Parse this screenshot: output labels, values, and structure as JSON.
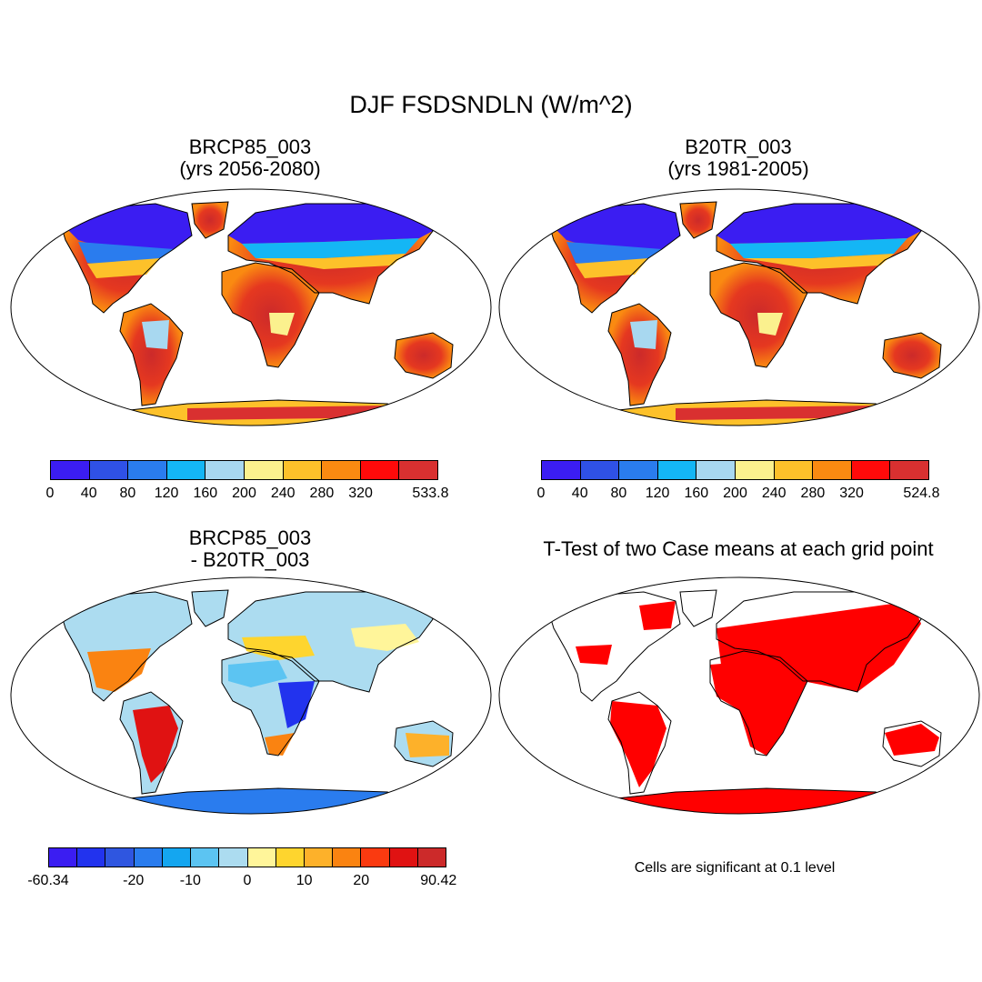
{
  "title": "DJF FSDSNDLN (W/m^2)",
  "panels": {
    "tl": {
      "line1": "BRCP85_003",
      "line2": "(yrs 2056-2080)"
    },
    "tr": {
      "line1": "B20TR_003",
      "line2": "(yrs 1981-2005)"
    },
    "bl": {
      "line1": "BRCP85_003",
      "line2": "- B20TR_003"
    },
    "br": {
      "line1": "T-Test of two Case means at each grid point"
    }
  },
  "colorbars": {
    "tl": {
      "colors": [
        "#3b1df2",
        "#2f51e6",
        "#2a7cee",
        "#14b6f5",
        "#a8d8f0",
        "#fbf18e",
        "#fdc12a",
        "#fa8a11",
        "#ff0a0a",
        "#d93030"
      ],
      "labels": [
        "0",
        "40",
        "80",
        "120",
        "160",
        "200",
        "240",
        "280",
        "320",
        "533.8"
      ]
    },
    "tr": {
      "colors": [
        "#3b1df2",
        "#2f51e6",
        "#2a7cee",
        "#14b6f5",
        "#a8d8f0",
        "#fbf18e",
        "#fdc12a",
        "#fa8a11",
        "#ff0a0a",
        "#d93030"
      ],
      "labels": [
        "0",
        "40",
        "80",
        "120",
        "160",
        "200",
        "240",
        "280",
        "320",
        "524.8"
      ]
    },
    "bl": {
      "colors": [
        "#3b1df2",
        "#2233ee",
        "#2f56e0",
        "#2a7cee",
        "#14a6f0",
        "#5cc4f2",
        "#acdcf0",
        "#fff59a",
        "#fed52e",
        "#fdb12a",
        "#fa8311",
        "#fa3a10",
        "#e01212",
        "#cc2a2a"
      ],
      "labels": [
        "-60.34",
        "-20",
        "-10",
        "0",
        "10",
        "20",
        "90.42"
      ]
    }
  },
  "note": "Cells are significant at 0.1 level"
}
